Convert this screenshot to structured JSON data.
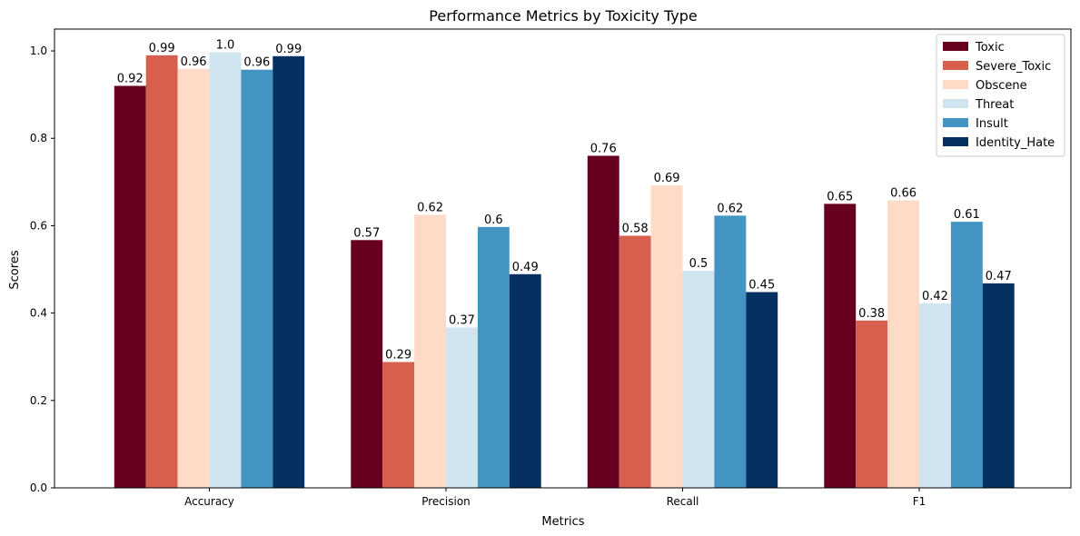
{
  "chart_data": {
    "type": "bar",
    "title": "Performance Metrics by Toxicity Type",
    "xlabel": "Metrics",
    "ylabel": "Scores",
    "categories": [
      "Accuracy",
      "Precision",
      "Recall",
      "F1"
    ],
    "ylim": [
      0,
      1.05
    ],
    "yticks": [
      "0.0",
      "0.2",
      "0.4",
      "0.6",
      "0.8",
      "1.0"
    ],
    "grid": false,
    "legend_position": "top-right",
    "series": [
      {
        "name": "Toxic",
        "color": "#67001f",
        "values": [
          0.92,
          0.567,
          0.76,
          0.65
        ],
        "labels": [
          "0.92",
          "0.57",
          "0.76",
          "0.65"
        ]
      },
      {
        "name": "Severe_Toxic",
        "color": "#d6604d",
        "values": [
          0.99,
          0.288,
          0.577,
          0.383
        ],
        "labels": [
          "0.99",
          "0.29",
          "0.58",
          "0.38"
        ]
      },
      {
        "name": "Obscene",
        "color": "#fddbc7",
        "values": [
          0.959,
          0.625,
          0.692,
          0.658
        ],
        "labels": [
          "0.96",
          "0.62",
          "0.69",
          "0.66"
        ]
      },
      {
        "name": "Threat",
        "color": "#d1e5f0",
        "values": [
          0.997,
          0.367,
          0.497,
          0.422
        ],
        "labels": [
          "1.0",
          "0.37",
          "0.5",
          "0.42"
        ]
      },
      {
        "name": "Insult",
        "color": "#4393c3",
        "values": [
          0.957,
          0.597,
          0.623,
          0.609
        ],
        "labels": [
          "0.96",
          "0.6",
          "0.62",
          "0.61"
        ]
      },
      {
        "name": "Identity_Hate",
        "color": "#053061",
        "values": [
          0.988,
          0.489,
          0.448,
          0.468
        ],
        "labels": [
          "0.99",
          "0.49",
          "0.45",
          "0.47"
        ]
      }
    ]
  }
}
